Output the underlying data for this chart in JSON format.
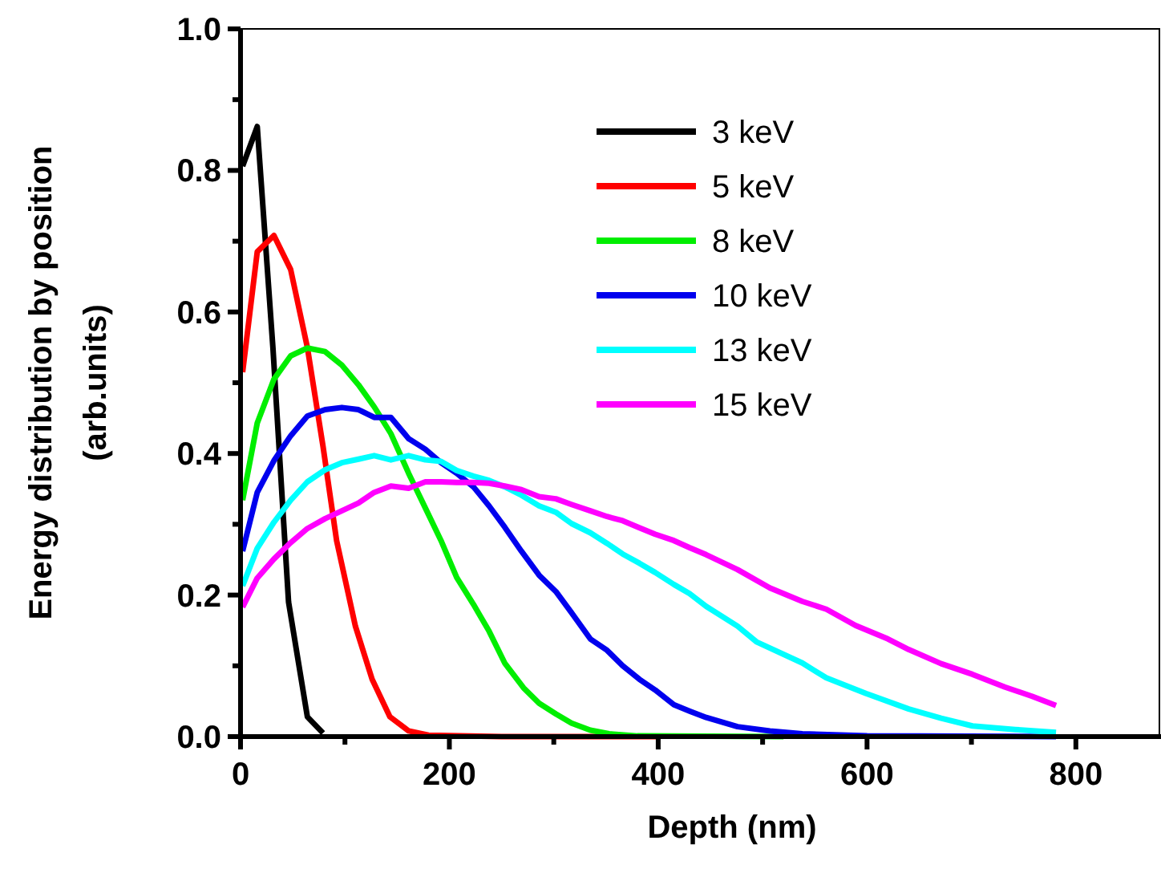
{
  "chart_data": {
    "type": "line",
    "xlabel": "Depth (nm)",
    "ylabel": "Energy distribution by position\n(arb.units)",
    "xlim": [
      0,
      880
    ],
    "ylim": [
      0,
      1.0
    ],
    "xticks": [
      0,
      {
        "value": 100,
        "label": null
      },
      200,
      {
        "value": 300,
        "label": null
      },
      400,
      {
        "value": 500,
        "label": null
      },
      600,
      {
        "value": 700,
        "label": null
      },
      800
    ],
    "yticks": [
      "0.0",
      {
        "value": 0.1,
        "label": null
      },
      {
        "value": 0.2,
        "label": "0.2"
      },
      {
        "value": 0.3,
        "label": null
      },
      {
        "value": 0.4,
        "label": "0.4"
      },
      {
        "value": 0.5,
        "label": null
      },
      {
        "value": 0.6,
        "label": "0.6"
      },
      {
        "value": 0.7,
        "label": null
      },
      {
        "value": 0.8,
        "label": "0.8"
      },
      {
        "value": 0.9,
        "label": null
      },
      {
        "value": 1.0,
        "label": "1.0"
      }
    ],
    "grid": false,
    "legend": "top right",
    "line_style": "solid",
    "marker": "none",
    "series": [
      {
        "name": "3 keV",
        "color": "#000000",
        "x": [
          2,
          16,
          31,
          46,
          64,
          79
        ],
        "values": [
          0.806,
          0.862,
          0.55,
          0.19,
          0.028,
          0.005
        ]
      },
      {
        "name": "5 keV",
        "color": "#ff0000",
        "x": [
          2,
          16,
          32,
          48,
          64,
          79,
          92,
          110,
          126,
          143,
          161,
          180,
          250,
          400
        ],
        "values": [
          0.515,
          0.685,
          0.708,
          0.66,
          0.55,
          0.41,
          0.277,
          0.156,
          0.081,
          0.028,
          0.008,
          0.002,
          0,
          0
        ]
      },
      {
        "name": "8 keV",
        "color": "#00ee00",
        "x": [
          2,
          16,
          32,
          48,
          64,
          81,
          97,
          113,
          128,
          144,
          161,
          177,
          192,
          207,
          223,
          238,
          253,
          271,
          286,
          302,
          317,
          335,
          353,
          380,
          520
        ],
        "values": [
          0.334,
          0.443,
          0.505,
          0.538,
          0.549,
          0.544,
          0.525,
          0.497,
          0.466,
          0.428,
          0.372,
          0.323,
          0.277,
          0.225,
          0.187,
          0.149,
          0.104,
          0.069,
          0.047,
          0.032,
          0.019,
          0.009,
          0.004,
          0.001,
          0
        ]
      },
      {
        "name": "10 keV",
        "color": "#0000ee",
        "x": [
          2,
          16,
          32,
          48,
          64,
          81,
          97,
          113,
          128,
          144,
          161,
          177,
          192,
          207,
          223,
          238,
          253,
          269,
          286,
          302,
          317,
          335,
          351,
          366,
          382,
          397,
          415,
          430,
          446,
          476,
          507,
          538,
          600,
          781
        ],
        "values": [
          0.262,
          0.345,
          0.39,
          0.425,
          0.453,
          0.462,
          0.465,
          0.462,
          0.451,
          0.451,
          0.421,
          0.406,
          0.387,
          0.372,
          0.353,
          0.326,
          0.296,
          0.262,
          0.228,
          0.205,
          0.175,
          0.138,
          0.122,
          0.1,
          0.081,
          0.066,
          0.045,
          0.036,
          0.027,
          0.014,
          0.008,
          0.004,
          0.001,
          0
        ]
      },
      {
        "name": "13 keV",
        "color": "#00ffff",
        "x": [
          2,
          16,
          32,
          48,
          64,
          81,
          97,
          113,
          128,
          144,
          161,
          177,
          192,
          207,
          223,
          238,
          253,
          269,
          286,
          302,
          317,
          335,
          351,
          366,
          382,
          397,
          415,
          430,
          446,
          476,
          494,
          538,
          561,
          599,
          640,
          671,
          701,
          742,
          781
        ],
        "values": [
          0.213,
          0.266,
          0.303,
          0.334,
          0.36,
          0.377,
          0.387,
          0.392,
          0.397,
          0.391,
          0.397,
          0.391,
          0.389,
          0.376,
          0.368,
          0.362,
          0.353,
          0.341,
          0.326,
          0.317,
          0.301,
          0.288,
          0.273,
          0.258,
          0.245,
          0.232,
          0.215,
          0.202,
          0.184,
          0.156,
          0.134,
          0.104,
          0.083,
          0.061,
          0.039,
          0.026,
          0.015,
          0.01,
          0.006
        ]
      },
      {
        "name": "15 keV",
        "color": "#ff00ff",
        "x": [
          2,
          16,
          32,
          48,
          64,
          81,
          97,
          113,
          128,
          144,
          161,
          177,
          192,
          207,
          223,
          238,
          253,
          269,
          286,
          302,
          317,
          335,
          351,
          366,
          382,
          397,
          415,
          430,
          446,
          476,
          507,
          538,
          561,
          589,
          620,
          640,
          671,
          701,
          732,
          758,
          781
        ],
        "values": [
          0.183,
          0.224,
          0.251,
          0.274,
          0.294,
          0.308,
          0.319,
          0.33,
          0.345,
          0.354,
          0.351,
          0.36,
          0.36,
          0.359,
          0.359,
          0.358,
          0.354,
          0.349,
          0.339,
          0.336,
          0.328,
          0.319,
          0.311,
          0.305,
          0.295,
          0.286,
          0.277,
          0.267,
          0.257,
          0.236,
          0.21,
          0.191,
          0.18,
          0.157,
          0.138,
          0.123,
          0.103,
          0.088,
          0.07,
          0.057,
          0.044
        ]
      }
    ]
  }
}
